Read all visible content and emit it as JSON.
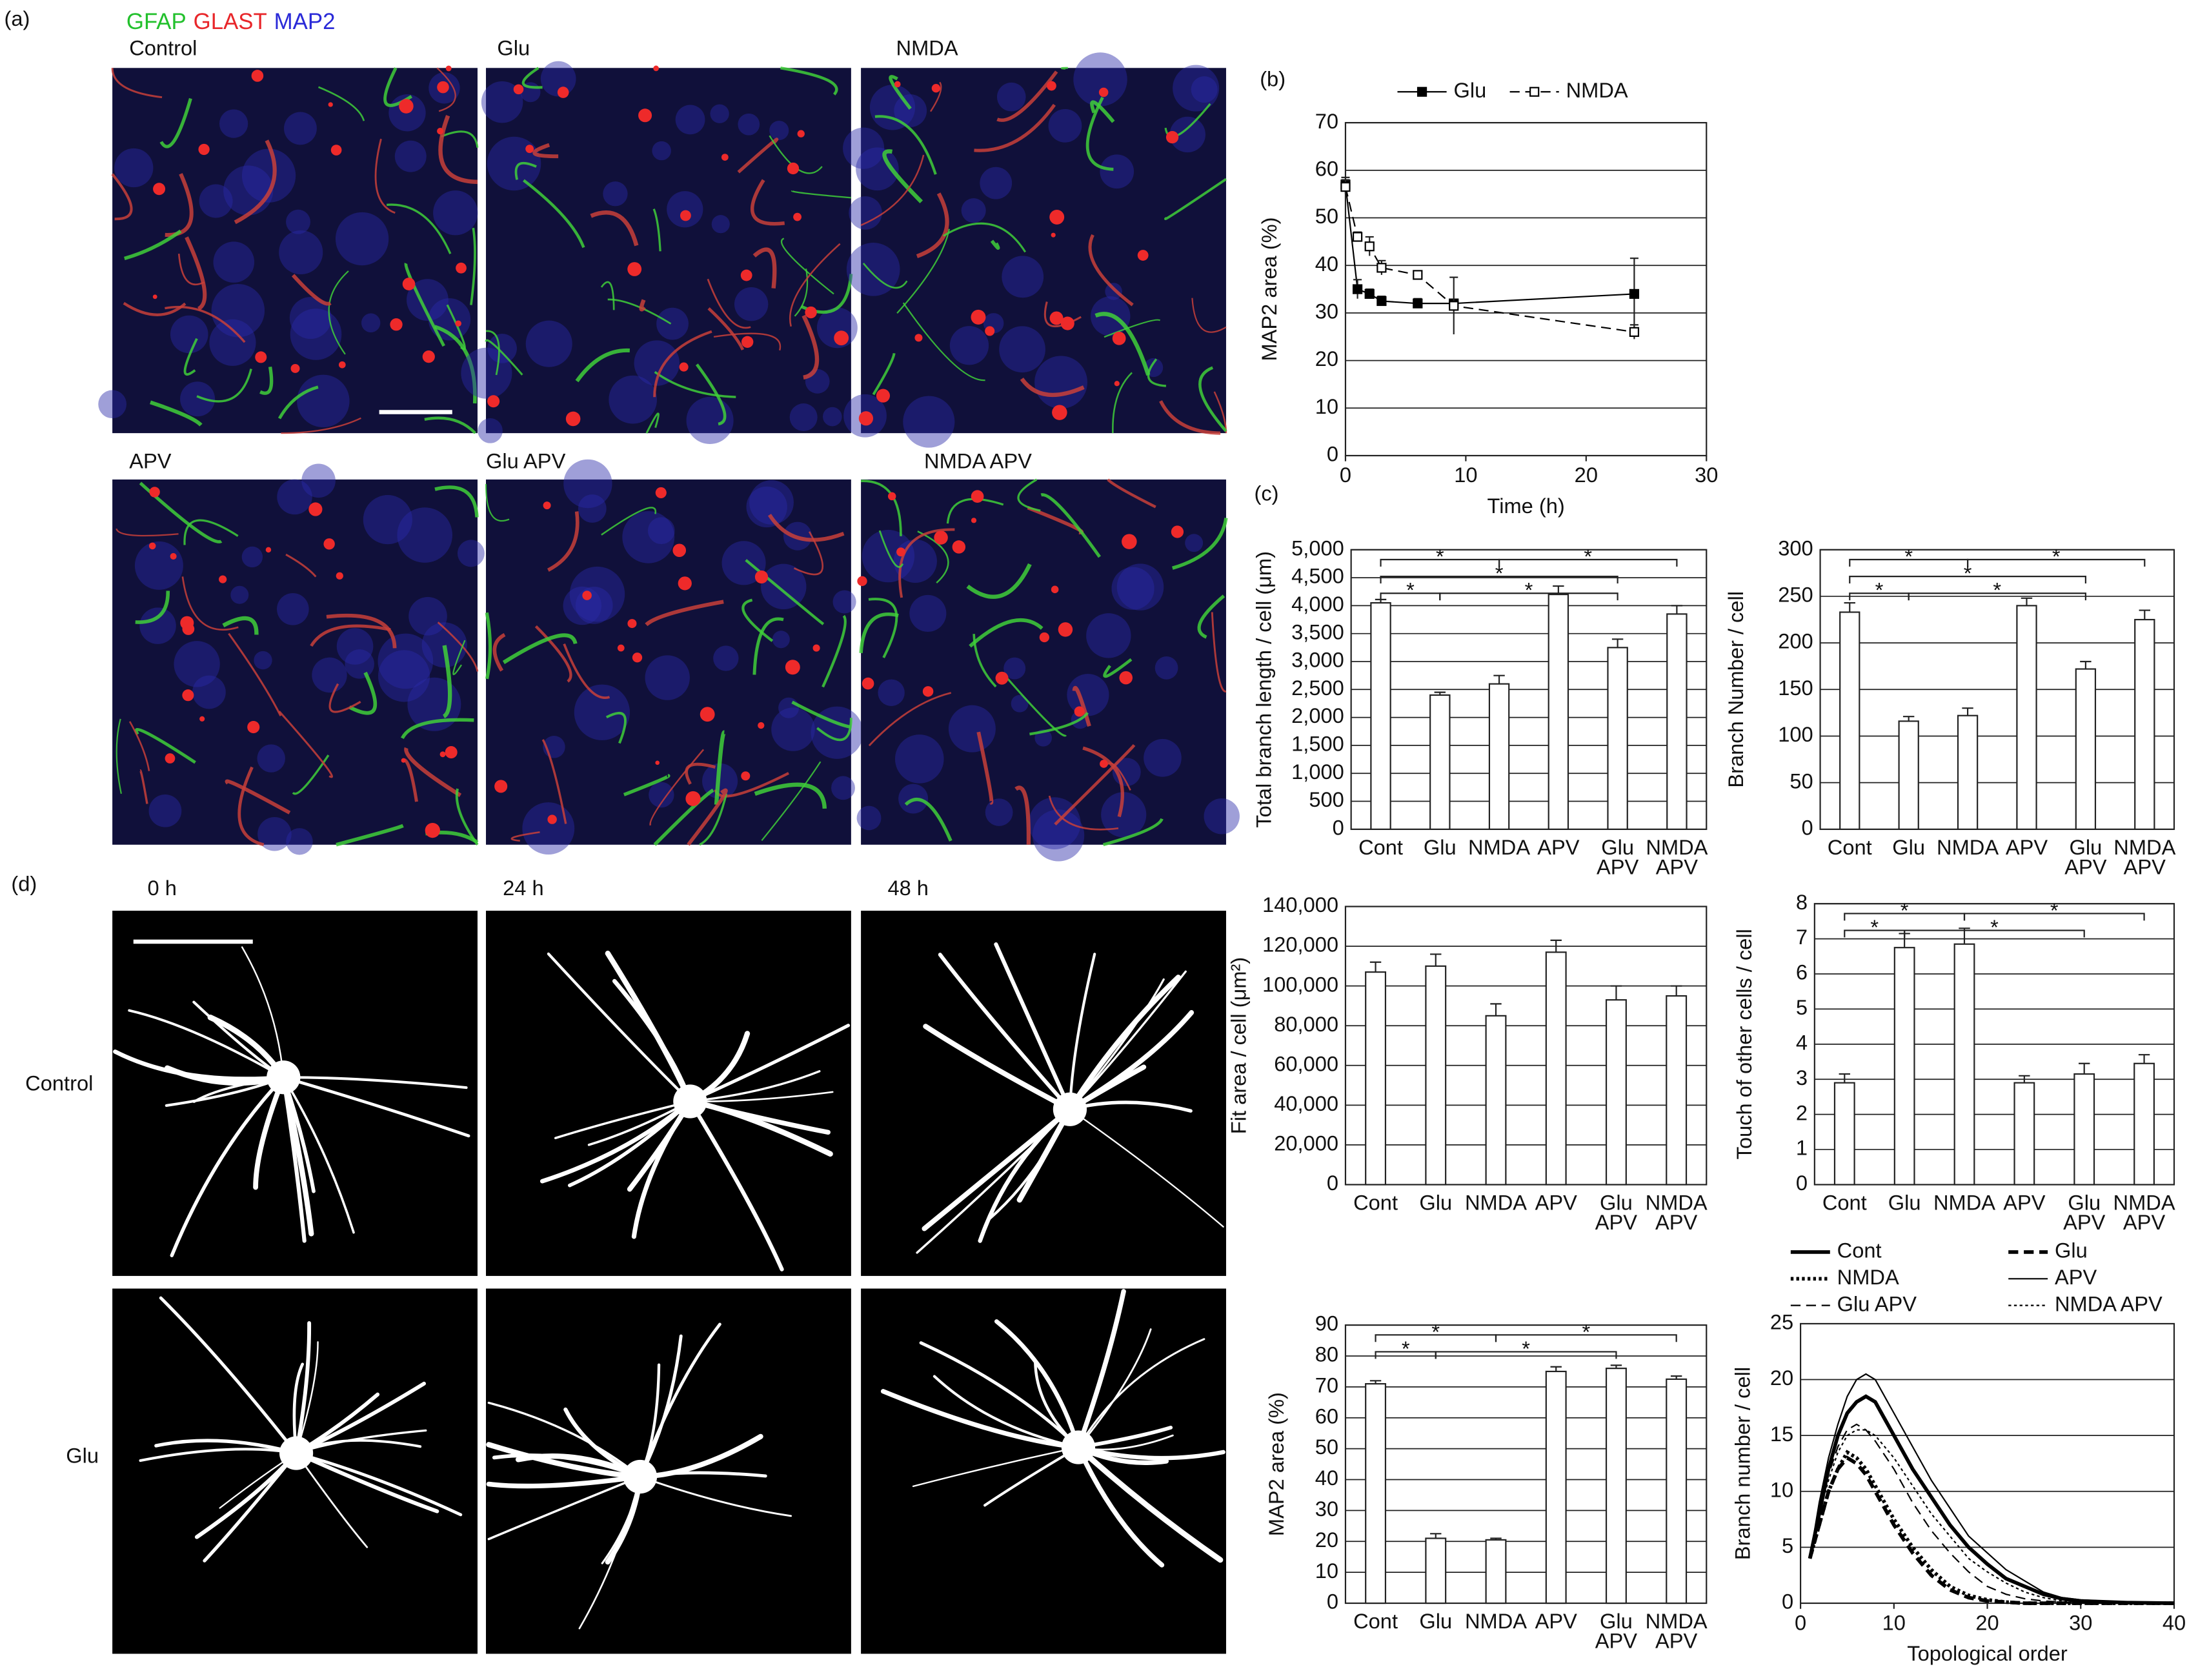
{
  "figure": {
    "panel_labels": [
      "(a)",
      "(b)",
      "(c)",
      "(d)"
    ],
    "stain_labels": [
      {
        "text": "GFAP",
        "color": "#22c02c"
      },
      {
        "text": "GLAST",
        "color": "#e8262a"
      },
      {
        "text": "MAP2",
        "color": "#2a2ad8"
      }
    ],
    "fluorescence_panels": [
      "Control",
      "Glu",
      "NMDA",
      "APV",
      "Glu APV",
      "NMDA APV"
    ],
    "time_labels": [
      "0 h",
      "24 h",
      "48 h"
    ],
    "row_labels": [
      "Control",
      "Glu"
    ]
  },
  "chart_data": [
    {
      "type": "line",
      "xlabel": "Time (h)",
      "ylabel": "MAP2 area (%)",
      "x": [
        0,
        1,
        2,
        3,
        6,
        9,
        24
      ],
      "series": [
        {
          "name": "Glu",
          "color": "#000000",
          "style": "solid",
          "marker": "filled-square",
          "values": [
            57,
            35,
            34,
            32.5,
            32,
            32,
            34
          ],
          "errors": [
            1.5,
            2,
            1,
            1,
            1,
            0.5,
            7.5
          ]
        },
        {
          "name": "NMDA",
          "color": "#000000",
          "style": "dashed",
          "marker": "open-square",
          "values": [
            56.5,
            46,
            44,
            39.5,
            38,
            31.5,
            26
          ],
          "errors": [
            1.5,
            1,
            2,
            1.5,
            0.5,
            6,
            1.5
          ]
        }
      ],
      "xlim": [
        0,
        30
      ],
      "xticks": [
        0,
        10,
        20,
        30
      ],
      "ylim": [
        0,
        70
      ],
      "yticks": [
        0,
        10,
        20,
        30,
        40,
        50,
        60,
        70
      ],
      "grid": true,
      "legend": "top"
    },
    {
      "type": "bar",
      "ylabel": "Total branch length / cell (μm)",
      "categories": [
        [
          "Cont"
        ],
        [
          "Glu"
        ],
        [
          "NMDA"
        ],
        [
          "APV"
        ],
        [
          "Glu",
          "APV"
        ],
        [
          "NMDA",
          "APV"
        ]
      ],
      "values": [
        4050,
        2400,
        2600,
        4200,
        3250,
        3850
      ],
      "errors": [
        60,
        50,
        150,
        150,
        150,
        150
      ],
      "color": "#ffffff",
      "ylim": [
        0,
        5000
      ],
      "yticks": [
        0,
        500,
        {
          "value": 1000,
          "label": "1,000"
        },
        {
          "value": 1500,
          "label": "1,500"
        },
        {
          "value": 2000,
          "label": "2,000"
        },
        {
          "value": 2500,
          "label": "2,500"
        },
        {
          "value": 3000,
          "label": "3,000"
        },
        {
          "value": 3500,
          "label": "3,500"
        },
        {
          "value": 4000,
          "label": "4,000"
        },
        {
          "value": 4500,
          "label": "4,500"
        },
        {
          "value": 5000,
          "label": "5,000"
        }
      ],
      "grid": true,
      "significance": [
        {
          "label": "*",
          "between": [
            0,
            2
          ]
        },
        {
          "label": "*",
          "between": [
            2,
            5
          ]
        },
        {
          "label": "*",
          "between": [
            0,
            4
          ]
        },
        {
          "label": "*",
          "between": [
            0,
            1
          ]
        },
        {
          "label": "*",
          "between": [
            1,
            4
          ]
        }
      ]
    },
    {
      "type": "bar",
      "ylabel": "Branch Number / cell",
      "categories": [
        [
          "Cont"
        ],
        [
          "Glu"
        ],
        [
          "NMDA"
        ],
        [
          "APV"
        ],
        [
          "Glu",
          "APV"
        ],
        [
          "NMDA",
          "APV"
        ]
      ],
      "values": [
        233,
        116,
        122,
        240,
        172,
        225
      ],
      "errors": [
        10,
        5,
        8,
        8,
        8,
        10
      ],
      "color": "#ffffff",
      "ylim": [
        0,
        300
      ],
      "yticks": [
        0,
        50,
        100,
        150,
        200,
        250,
        300
      ],
      "grid": true,
      "significance": [
        {
          "label": "*",
          "between": [
            0,
            2
          ]
        },
        {
          "label": "*",
          "between": [
            2,
            5
          ]
        },
        {
          "label": "*",
          "between": [
            0,
            4
          ]
        },
        {
          "label": "*",
          "between": [
            0,
            1
          ]
        },
        {
          "label": "*",
          "between": [
            1,
            4
          ]
        }
      ]
    },
    {
      "type": "bar",
      "ylabel": "Fit area / cell (μm²)",
      "categories": [
        [
          "Cont"
        ],
        [
          "Glu"
        ],
        [
          "NMDA"
        ],
        [
          "APV"
        ],
        [
          "Glu",
          "APV"
        ],
        [
          "NMDA",
          "APV"
        ]
      ],
      "values": [
        107000,
        110000,
        85000,
        117000,
        93000,
        95000
      ],
      "errors": [
        5000,
        6000,
        6000,
        6000,
        7000,
        5000
      ],
      "color": "#ffffff",
      "ylim": [
        0,
        140000
      ],
      "yticks": [
        0,
        {
          "value": 20000,
          "label": "20,000"
        },
        {
          "value": 40000,
          "label": "40,000"
        },
        {
          "value": 60000,
          "label": "60,000"
        },
        {
          "value": 80000,
          "label": "80,000"
        },
        {
          "value": 100000,
          "label": "100,000"
        },
        {
          "value": 120000,
          "label": "120,000"
        },
        {
          "value": 140000,
          "label": "140,000"
        }
      ],
      "grid": true
    },
    {
      "type": "bar",
      "ylabel": "Touch of other cells / cell",
      "categories": [
        [
          "Cont"
        ],
        [
          "Glu"
        ],
        [
          "NMDA"
        ],
        [
          "APV"
        ],
        [
          "Glu",
          "APV"
        ],
        [
          "NMDA",
          "APV"
        ]
      ],
      "values": [
        2.9,
        6.75,
        6.85,
        2.9,
        3.15,
        3.45
      ],
      "errors": [
        0.25,
        0.4,
        0.45,
        0.2,
        0.3,
        0.25
      ],
      "color": "#ffffff",
      "ylim": [
        0,
        8
      ],
      "yticks": [
        0,
        1,
        2,
        3,
        4,
        5,
        6,
        7,
        8
      ],
      "grid": true,
      "significance": [
        {
          "label": "*",
          "between": [
            0,
            2
          ]
        },
        {
          "label": "*",
          "between": [
            2,
            5
          ]
        },
        {
          "label": "*",
          "between": [
            0,
            1
          ]
        },
        {
          "label": "*",
          "between": [
            1,
            4
          ]
        }
      ]
    },
    {
      "type": "bar",
      "ylabel": "MAP2 area (%)",
      "categories": [
        [
          "Cont"
        ],
        [
          "Glu"
        ],
        [
          "NMDA"
        ],
        [
          "APV"
        ],
        [
          "Glu",
          "APV"
        ],
        [
          "NMDA",
          "APV"
        ]
      ],
      "values": [
        71,
        21,
        20.5,
        75,
        76,
        72.5
      ],
      "errors": [
        1,
        1.5,
        0.5,
        1.5,
        1,
        1
      ],
      "color": "#ffffff",
      "ylim": [
        0,
        90
      ],
      "yticks": [
        0,
        10,
        20,
        30,
        40,
        50,
        60,
        70,
        80,
        90
      ],
      "grid": true,
      "significance": [
        {
          "label": "*",
          "between": [
            0,
            2
          ]
        },
        {
          "label": "*",
          "between": [
            2,
            5
          ]
        },
        {
          "label": "*",
          "between": [
            1,
            4
          ]
        },
        {
          "label": "*",
          "between": [
            0,
            1
          ]
        }
      ]
    },
    {
      "type": "line",
      "xlabel": "Topological order",
      "ylabel": "Branch number / cell",
      "x": [
        1,
        2,
        3,
        4,
        5,
        6,
        7,
        8,
        10,
        12,
        14,
        16,
        18,
        20,
        22,
        24,
        26,
        28,
        30,
        35,
        40
      ],
      "series": [
        {
          "name": "Cont",
          "color": "#000000",
          "style": "thick solid",
          "values": [
            4,
            8,
            12,
            15,
            17,
            18,
            18.5,
            18,
            15,
            12,
            9.5,
            7,
            5,
            3.5,
            2.2,
            1.5,
            0.8,
            0.4,
            0.2,
            0.05,
            0
          ]
        },
        {
          "name": "Glu",
          "color": "#000000",
          "style": "thick dashed",
          "values": [
            4,
            7,
            10,
            12,
            13,
            12.5,
            11.5,
            10,
            7,
            4.5,
            2.5,
            1.2,
            0.5,
            0.2,
            0.1,
            0,
            0,
            0,
            0,
            0,
            0
          ]
        },
        {
          "name": "NMDA",
          "color": "#000000",
          "style": "thick dotted",
          "values": [
            4,
            7,
            10,
            12,
            13.5,
            13,
            12,
            10.5,
            7.5,
            5,
            3,
            1.5,
            0.7,
            0.3,
            0.1,
            0,
            0,
            0,
            0,
            0,
            0
          ]
        },
        {
          "name": "APV",
          "color": "#000000",
          "style": "solid",
          "values": [
            4,
            9,
            13,
            16,
            18.5,
            20,
            20.5,
            20,
            17,
            14,
            11,
            8.5,
            6,
            4.5,
            3,
            2,
            1,
            0.5,
            0.3,
            0.1,
            0
          ]
        },
        {
          "name": "Glu APV",
          "color": "#000000",
          "style": "dashed",
          "values": [
            4,
            8,
            11.5,
            14,
            15.5,
            16,
            15.5,
            14.5,
            12,
            9,
            6.5,
            4.5,
            2.8,
            1.5,
            0.8,
            0.4,
            0.2,
            0.1,
            0,
            0,
            0
          ]
        },
        {
          "name": "NMDA APV",
          "color": "#000000",
          "style": "dotted",
          "values": [
            4,
            8,
            11,
            13.5,
            15,
            15.5,
            15.5,
            15,
            13,
            10.5,
            8,
            6,
            4,
            2.8,
            1.8,
            1,
            0.5,
            0.2,
            0.1,
            0,
            0
          ]
        }
      ],
      "xlim": [
        0,
        40
      ],
      "xticks": [
        0,
        10,
        20,
        30,
        40
      ],
      "ylim": [
        0,
        25
      ],
      "yticks": [
        0,
        5,
        10,
        15,
        20,
        25
      ],
      "grid": true,
      "legend": "top"
    }
  ]
}
